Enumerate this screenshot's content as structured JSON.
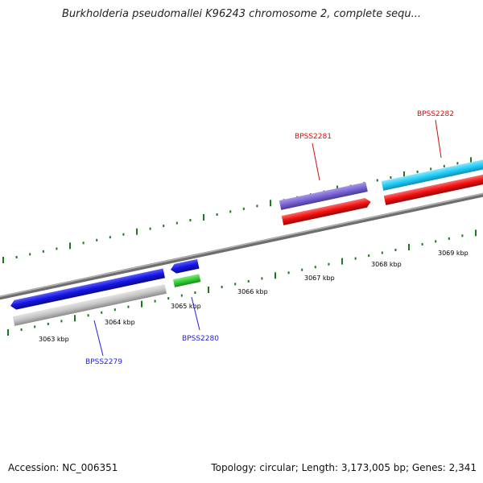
{
  "header": {
    "title": "Burkholderia pseudomallei K96243 chromosome 2, complete sequ..."
  },
  "footer": {
    "accession": "Accession: NC_006351",
    "summary": "Topology: circular; Length: 3,173,005 bp; Genes: 2,341"
  },
  "scale": {
    "ticks": [
      "3063 kbp",
      "3064 kbp",
      "3065 kbp",
      "3066 kbp",
      "3067 kbp",
      "3068 kbp",
      "3069 kbp"
    ]
  },
  "genes": [
    {
      "label": "BPSS2279",
      "color": "#1d1df0"
    },
    {
      "label": "BPSS2280",
      "color": "#1d1df0"
    },
    {
      "label": "BPSS2281",
      "color": "#cc1111"
    },
    {
      "label": "BPSS2282",
      "color": "#cc1111"
    }
  ],
  "colors": {
    "backbone": "#808080",
    "tick": "#1a7a1a",
    "blue": "#1515e0",
    "grey": "#c4c4c4",
    "green": "#33cc33",
    "purple": "#7a64d2",
    "red": "#f01010",
    "cyan": "#22ccf5"
  }
}
